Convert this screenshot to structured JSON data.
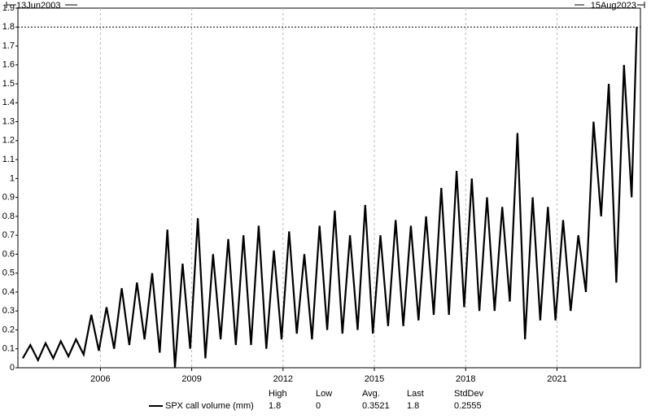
{
  "chart_data": {
    "type": "line",
    "start_label": "13Jun2003",
    "end_label": "15Aug2023",
    "x": [
      2003.45,
      2003.7,
      2003.95,
      2004.2,
      2004.45,
      2004.7,
      2004.95,
      2005.2,
      2005.45,
      2005.7,
      2005.95,
      2006.2,
      2006.45,
      2006.7,
      2006.95,
      2007.2,
      2007.45,
      2007.7,
      2007.95,
      2008.2,
      2008.45,
      2008.7,
      2008.95,
      2009.2,
      2009.45,
      2009.7,
      2009.95,
      2010.2,
      2010.45,
      2010.7,
      2010.95,
      2011.2,
      2011.45,
      2011.7,
      2011.95,
      2012.2,
      2012.45,
      2012.7,
      2012.95,
      2013.2,
      2013.45,
      2013.7,
      2013.95,
      2014.2,
      2014.45,
      2014.7,
      2014.95,
      2015.2,
      2015.45,
      2015.7,
      2015.95,
      2016.2,
      2016.45,
      2016.7,
      2016.95,
      2017.2,
      2017.45,
      2017.7,
      2017.95,
      2018.2,
      2018.45,
      2018.7,
      2018.95,
      2019.2,
      2019.45,
      2019.7,
      2019.95,
      2020.2,
      2020.45,
      2020.7,
      2020.95,
      2021.2,
      2021.45,
      2021.7,
      2021.95,
      2022.2,
      2022.45,
      2022.7,
      2022.95,
      2023.2,
      2023.45,
      2023.62
    ],
    "series": [
      {
        "name": "SPX call volume (mm)",
        "color": "#000000",
        "values": [
          0.05,
          0.12,
          0.04,
          0.13,
          0.05,
          0.14,
          0.06,
          0.15,
          0.07,
          0.28,
          0.09,
          0.32,
          0.1,
          0.42,
          0.12,
          0.45,
          0.15,
          0.5,
          0.08,
          0.73,
          0,
          0.55,
          0.1,
          0.79,
          0.05,
          0.6,
          0.15,
          0.68,
          0.12,
          0.7,
          0.12,
          0.75,
          0.1,
          0.62,
          0.15,
          0.72,
          0.18,
          0.6,
          0.15,
          0.75,
          0.2,
          0.83,
          0.18,
          0.7,
          0.2,
          0.86,
          0.18,
          0.7,
          0.22,
          0.78,
          0.22,
          0.75,
          0.25,
          0.8,
          0.28,
          0.95,
          0.28,
          1.04,
          0.32,
          1.0,
          0.3,
          0.9,
          0.3,
          0.85,
          0.35,
          1.24,
          0.15,
          0.9,
          0.25,
          0.85,
          0.25,
          0.78,
          0.3,
          0.7,
          0.4,
          1.3,
          0.8,
          1.5,
          0.45,
          1.6,
          0.9,
          1.8
        ]
      }
    ],
    "xlim": [
      2003.29,
      2023.74
    ],
    "xticks": [
      2006,
      2009,
      2012,
      2015,
      2018,
      2021
    ],
    "ylim": [
      0,
      1.9
    ],
    "yticks": [
      0,
      0.1,
      0.2,
      0.3,
      0.4,
      0.5,
      0.6,
      0.7,
      0.8,
      0.9,
      1,
      1.1,
      1.2,
      1.3,
      1.4,
      1.5,
      1.6,
      1.7,
      1.8,
      1.9
    ],
    "grid": true,
    "stats": {
      "labels": [
        "High",
        "Low",
        "Avg.",
        "Last",
        "StdDev"
      ],
      "values": [
        1.8,
        0,
        0.3521,
        1.8,
        0.2555
      ]
    }
  }
}
